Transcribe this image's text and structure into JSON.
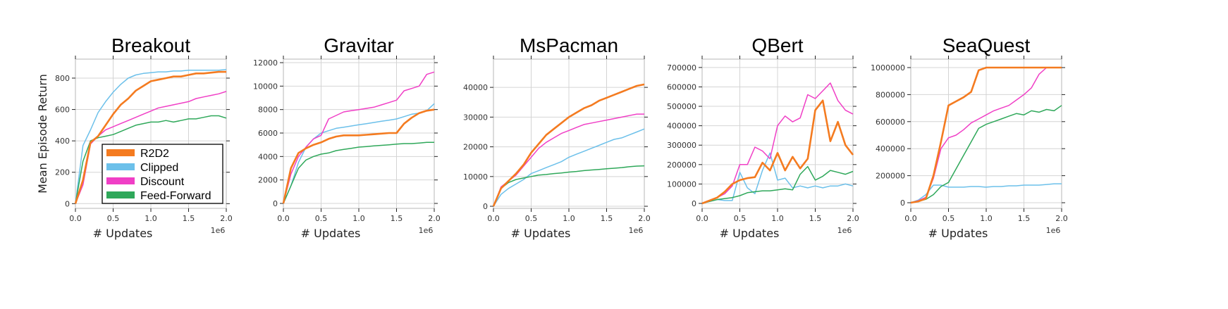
{
  "chart_data": {
    "type": "line",
    "shared": {
      "ylabel": "Mean Episode Return",
      "xlabel": "# Updates",
      "x_offset_text": "1e6",
      "x": [
        0,
        0.1,
        0.2,
        0.3,
        0.4,
        0.5,
        0.6,
        0.7,
        0.8,
        0.9,
        1.0,
        1.1,
        1.2,
        1.3,
        1.4,
        1.5,
        1.6,
        1.7,
        1.8,
        1.9,
        2.0
      ],
      "xlim": [
        0,
        2.0
      ],
      "xticks": [
        "0.0",
        "0.5",
        "1.0",
        "1.5",
        "2.0"
      ],
      "grid": true,
      "legend": {
        "placement": "lower-right (in first panel)",
        "entries": [
          "R2D2",
          "Clipped",
          "Discount",
          "Feed-Forward"
        ]
      },
      "colors": {
        "R2D2": "#f47b20",
        "Clipped": "#6cc0ea",
        "Discount": "#f03fc6",
        "Feed-Forward": "#2fa85a"
      }
    },
    "panels": [
      {
        "title": "Breakout",
        "ylim": [
          -30,
          921
        ],
        "yticks": [
          0,
          200,
          400,
          600,
          800
        ],
        "series": [
          {
            "name": "R2D2",
            "values": [
              0,
              150,
              390,
              430,
              500,
              570,
              630,
              670,
              720,
              750,
              780,
              790,
              800,
              810,
              810,
              820,
              830,
              830,
              835,
              840,
              840
            ]
          },
          {
            "name": "Clipped",
            "values": [
              0,
              370,
              470,
              580,
              650,
              710,
              760,
              800,
              820,
              830,
              835,
              840,
              840,
              845,
              845,
              850,
              850,
              850,
              850,
              850,
              855
            ]
          },
          {
            "name": "Discount",
            "values": [
              0,
              120,
              380,
              430,
              470,
              490,
              510,
              530,
              550,
              570,
              590,
              610,
              620,
              630,
              640,
              650,
              670,
              680,
              690,
              700,
              715
            ]
          },
          {
            "name": "Feed-Forward",
            "values": [
              0,
              270,
              400,
              420,
              430,
              440,
              460,
              480,
              500,
              510,
              520,
              520,
              530,
              520,
              530,
              540,
              540,
              550,
              560,
              560,
              545
            ]
          }
        ]
      },
      {
        "title": "Gravitar",
        "ylim": [
          -420,
          12300
        ],
        "yticks": [
          0,
          2000,
          4000,
          6000,
          8000,
          10000,
          12000
        ],
        "series": [
          {
            "name": "R2D2",
            "values": [
              0,
              3000,
              4300,
              4700,
              5000,
              5200,
              5500,
              5700,
              5800,
              5800,
              5800,
              5850,
              5900,
              5950,
              6000,
              6000,
              6800,
              7300,
              7700,
              7900,
              8000
            ]
          },
          {
            "name": "Clipped",
            "values": [
              0,
              1500,
              3500,
              4800,
              5500,
              6000,
              6200,
              6400,
              6500,
              6600,
              6700,
              6800,
              6900,
              7000,
              7100,
              7200,
              7400,
              7600,
              7700,
              7900,
              8500
            ]
          },
          {
            "name": "Discount",
            "values": [
              0,
              2500,
              4000,
              4800,
              5500,
              5800,
              7200,
              7500,
              7800,
              7900,
              8000,
              8100,
              8200,
              8400,
              8600,
              8800,
              9600,
              9800,
              10000,
              11000,
              11200
            ]
          },
          {
            "name": "Feed-Forward",
            "values": [
              0,
              1500,
              3000,
              3700,
              4000,
              4200,
              4300,
              4500,
              4600,
              4700,
              4800,
              4850,
              4900,
              4950,
              5000,
              5050,
              5100,
              5100,
              5150,
              5200,
              5200
            ]
          }
        ]
      },
      {
        "title": "MsPacman",
        "ylim": [
          -700,
          49500
        ],
        "yticks": [
          0,
          10000,
          20000,
          30000,
          40000
        ],
        "series": [
          {
            "name": "R2D2",
            "values": [
              0,
              6000,
              8500,
              11000,
              14000,
              18000,
              21000,
              24000,
              26000,
              28000,
              30000,
              31500,
              33000,
              34000,
              35500,
              36500,
              37500,
              38500,
              39500,
              40500,
              41000
            ]
          },
          {
            "name": "Clipped",
            "values": [
              0,
              4000,
              6000,
              7500,
              9000,
              11000,
              12000,
              13000,
              14000,
              15000,
              16500,
              17500,
              18500,
              19500,
              20500,
              21500,
              22500,
              23000,
              24000,
              25000,
              26000
            ]
          },
          {
            "name": "Discount",
            "values": [
              0,
              6500,
              8500,
              10500,
              13500,
              16500,
              19500,
              21500,
              23000,
              24500,
              25500,
              26500,
              27500,
              28000,
              28500,
              29000,
              29500,
              30000,
              30500,
              31000,
              31000
            ]
          },
          {
            "name": "Feed-Forward",
            "values": [
              0,
              6000,
              8000,
              9000,
              9500,
              10000,
              10500,
              10700,
              11000,
              11200,
              11500,
              11700,
              12000,
              12200,
              12400,
              12600,
              12800,
              13000,
              13300,
              13500,
              13600
            ]
          }
        ]
      },
      {
        "title": "QBert",
        "ylim": [
          -25400,
          743000
        ],
        "yticks": [
          0,
          100000,
          200000,
          300000,
          400000,
          500000,
          600000,
          700000
        ],
        "series": [
          {
            "name": "R2D2",
            "values": [
              0,
              15000,
              30000,
              60000,
              100000,
              120000,
              130000,
              135000,
              210000,
              170000,
              260000,
              170000,
              240000,
              180000,
              230000,
              480000,
              530000,
              320000,
              420000,
              300000,
              250000
            ]
          },
          {
            "name": "Clipped",
            "values": [
              0,
              10000,
              20000,
              15000,
              15000,
              160000,
              80000,
              50000,
              170000,
              260000,
              120000,
              130000,
              80000,
              90000,
              80000,
              90000,
              80000,
              90000,
              90000,
              100000,
              90000
            ]
          },
          {
            "name": "Discount",
            "values": [
              0,
              15000,
              30000,
              50000,
              90000,
              200000,
              200000,
              290000,
              270000,
              230000,
              400000,
              450000,
              420000,
              440000,
              560000,
              540000,
              580000,
              620000,
              530000,
              480000,
              460000
            ]
          },
          {
            "name": "Feed-Forward",
            "values": [
              0,
              10000,
              20000,
              25000,
              30000,
              40000,
              55000,
              60000,
              65000,
              65000,
              70000,
              75000,
              70000,
              150000,
              190000,
              120000,
              140000,
              170000,
              160000,
              150000,
              165000
            ]
          }
        ]
      },
      {
        "title": "SeaQuest",
        "ylim": [
          -41700,
          1062500
        ],
        "yticks": [
          0,
          200000,
          400000,
          600000,
          800000,
          1000000
        ],
        "series": [
          {
            "name": "R2D2",
            "values": [
              0,
              10000,
              30000,
              200000,
              450000,
              720000,
              750000,
              780000,
              820000,
              980000,
              1000000,
              1000000,
              1000000,
              1000000,
              1000000,
              1000000,
              1000000,
              1000000,
              1000000,
              1000000,
              1000000
            ]
          },
          {
            "name": "Clipped",
            "values": [
              0,
              20000,
              60000,
              130000,
              130000,
              115000,
              115000,
              115000,
              120000,
              120000,
              115000,
              120000,
              120000,
              125000,
              125000,
              130000,
              130000,
              130000,
              135000,
              140000,
              140000
            ]
          },
          {
            "name": "Discount",
            "values": [
              0,
              15000,
              40000,
              180000,
              400000,
              480000,
              500000,
              540000,
              590000,
              620000,
              650000,
              680000,
              700000,
              720000,
              760000,
              800000,
              850000,
              950000,
              1000000,
              1000000,
              1000000
            ]
          },
          {
            "name": "Feed-Forward",
            "values": [
              0,
              10000,
              25000,
              60000,
              120000,
              150000,
              250000,
              350000,
              450000,
              550000,
              580000,
              600000,
              620000,
              640000,
              660000,
              650000,
              680000,
              670000,
              690000,
              680000,
              720000
            ]
          }
        ]
      }
    ]
  }
}
